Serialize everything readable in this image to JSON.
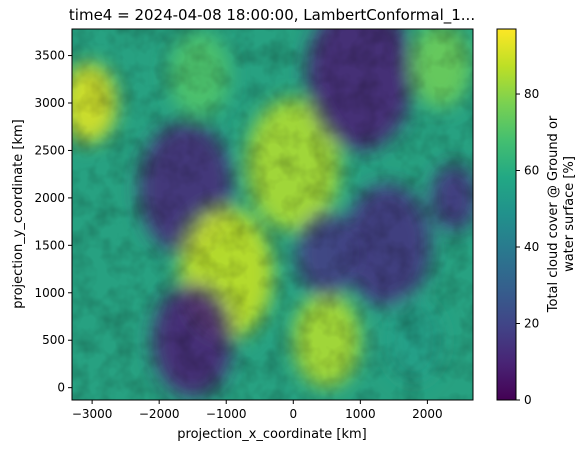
{
  "chart_data": {
    "type": "heatmap",
    "title": "time4 = 2024-04-08 18:00:00, LambertConformal_1...",
    "xlabel": "projection_x_coordinate [km]",
    "ylabel": "projection_y_coordinate [km]",
    "xlim": [
      -3300,
      2680
    ],
    "ylim": [
      -130,
      3780
    ],
    "x_ticks": [
      -3000,
      -2000,
      -1000,
      0,
      1000,
      2000
    ],
    "y_ticks": [
      0,
      500,
      1000,
      1500,
      2000,
      2500,
      3000,
      3500
    ],
    "x_tick_labels": [
      "−3000",
      "−2000",
      "−1000",
      "0",
      "1000",
      "2000"
    ],
    "y_tick_labels": [
      "0",
      "500",
      "1000",
      "1500",
      "2000",
      "2500",
      "3000",
      "3500"
    ],
    "colorbar": {
      "label_line1": "Total cloud cover @ Ground or",
      "label_line2": "water surface [%]",
      "range": [
        0,
        97
      ],
      "ticks": [
        0,
        20,
        40,
        60,
        80
      ],
      "tick_labels": [
        "0",
        "20",
        "40",
        "60",
        "80"
      ],
      "colormap": "viridis"
    },
    "features": [
      {
        "kind": "high",
        "x": -3050,
        "y": 3000,
        "r": 420,
        "value": 92
      },
      {
        "kind": "high",
        "x": -1400,
        "y": 3300,
        "r": 450,
        "value": 70
      },
      {
        "kind": "low",
        "x": -1600,
        "y": 2100,
        "r": 700,
        "value": 12
      },
      {
        "kind": "high",
        "x": 0,
        "y": 2350,
        "r": 700,
        "value": 85
      },
      {
        "kind": "low",
        "x": 1400,
        "y": 1500,
        "r": 650,
        "value": 15
      },
      {
        "kind": "high",
        "x": -1000,
        "y": 1200,
        "r": 700,
        "value": 88
      },
      {
        "kind": "low",
        "x": -1500,
        "y": 500,
        "r": 600,
        "value": 10
      },
      {
        "kind": "high",
        "x": 500,
        "y": 500,
        "r": 500,
        "value": 85
      },
      {
        "kind": "low",
        "x": 1000,
        "y": 3300,
        "r": 800,
        "value": 10
      },
      {
        "kind": "high",
        "x": 2200,
        "y": 3400,
        "r": 450,
        "value": 75
      },
      {
        "kind": "low",
        "x": 2400,
        "y": 2000,
        "r": 350,
        "value": 15
      },
      {
        "kind": "low",
        "x": 500,
        "y": 1400,
        "r": 450,
        "value": 18
      },
      {
        "kind": "high",
        "x": 1800,
        "y": 500,
        "r": 450,
        "value": 55
      }
    ]
  }
}
